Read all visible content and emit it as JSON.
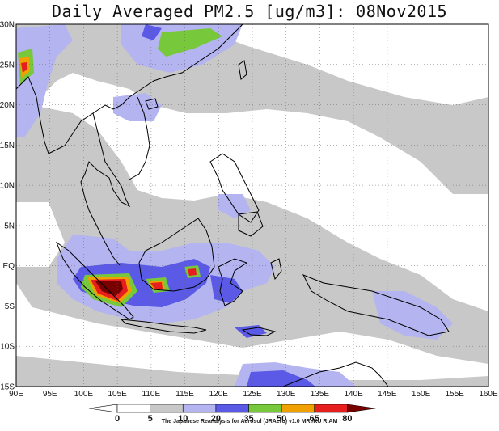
{
  "title": "Daily Averaged PM2.5 [ug/m3]: 08Nov2015",
  "credit": "The Japanese Reanalysis for Aerosol (JRAero) v1.0 MRI/KU RIAM",
  "map": {
    "lon_range": [
      90,
      160
    ],
    "lat_range": [
      -15,
      30
    ],
    "lon_ticks": [
      "90E",
      "95E",
      "100E",
      "105E",
      "110E",
      "115E",
      "120E",
      "125E",
      "130E",
      "135E",
      "140E",
      "145E",
      "150E",
      "155E",
      "160E"
    ],
    "lat_ticks": [
      "30N",
      "25N",
      "20N",
      "15N",
      "10N",
      "5N",
      "EQ",
      "5S",
      "10S",
      "15S"
    ]
  },
  "colorbar": {
    "labels": [
      "0",
      "5",
      "10",
      "20",
      "35",
      "50",
      "65",
      "80"
    ],
    "colors": [
      "#ffffff",
      "#c8c8c8",
      "#b4b4f0",
      "#5a5ae6",
      "#78c83c",
      "#f0a000",
      "#e61e1e",
      "#780000"
    ]
  }
}
